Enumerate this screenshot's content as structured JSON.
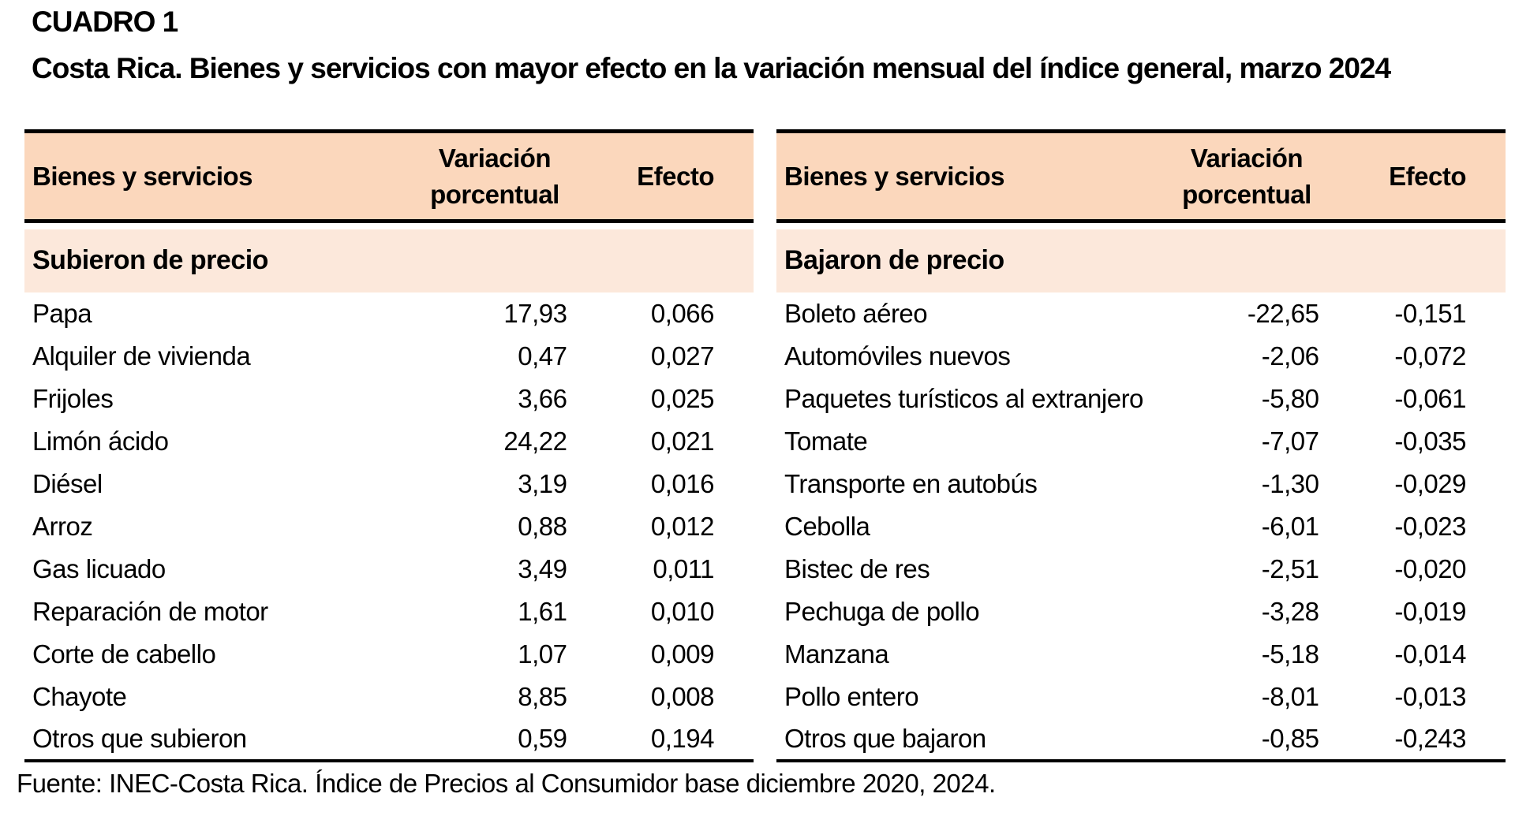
{
  "page": {
    "label": "CUADRO 1",
    "title": "Costa Rica. Bienes y servicios con mayor efecto en la variación mensual del índice general, marzo 2024",
    "source": "Fuente: INEC-Costa Rica. Índice de Precios al Consumidor base diciembre 2020, 2024."
  },
  "colors": {
    "header_bg": "#FBD7BC",
    "section_bg": "#FCE8DB",
    "border": "#000000"
  },
  "columns": {
    "items": "Bienes y servicios",
    "variation_line1": "Variación",
    "variation_line2": "porcentual",
    "effect": "Efecto"
  },
  "tables": [
    {
      "section": "Subieron de precio",
      "rows": [
        {
          "name": "Papa",
          "variation": "17,93",
          "effect": "0,066"
        },
        {
          "name": "Alquiler de vivienda",
          "variation": "0,47",
          "effect": "0,027"
        },
        {
          "name": "Frijoles",
          "variation": "3,66",
          "effect": "0,025"
        },
        {
          "name": "Limón ácido",
          "variation": "24,22",
          "effect": "0,021"
        },
        {
          "name": "Diésel",
          "variation": "3,19",
          "effect": "0,016"
        },
        {
          "name": "Arroz",
          "variation": "0,88",
          "effect": "0,012"
        },
        {
          "name": "Gas licuado",
          "variation": "3,49",
          "effect": "0,011"
        },
        {
          "name": "Reparación de motor",
          "variation": "1,61",
          "effect": "0,010"
        },
        {
          "name": "Corte de cabello",
          "variation": "1,07",
          "effect": "0,009"
        },
        {
          "name": "Chayote",
          "variation": "8,85",
          "effect": "0,008"
        },
        {
          "name": "Otros que subieron",
          "variation": "0,59",
          "effect": "0,194"
        }
      ]
    },
    {
      "section": "Bajaron de precio",
      "rows": [
        {
          "name": "Boleto aéreo",
          "variation": "-22,65",
          "effect": "-0,151"
        },
        {
          "name": "Automóviles nuevos",
          "variation": "-2,06",
          "effect": "-0,072"
        },
        {
          "name": "Paquetes turísticos al extranjero",
          "variation": "-5,80",
          "effect": "-0,061"
        },
        {
          "name": "Tomate",
          "variation": "-7,07",
          "effect": "-0,035"
        },
        {
          "name": "Transporte en autobús",
          "variation": "-1,30",
          "effect": "-0,029"
        },
        {
          "name": "Cebolla",
          "variation": "-6,01",
          "effect": "-0,023"
        },
        {
          "name": "Bistec de res",
          "variation": "-2,51",
          "effect": "-0,020"
        },
        {
          "name": "Pechuga de pollo",
          "variation": "-3,28",
          "effect": "-0,019"
        },
        {
          "name": "Manzana",
          "variation": "-5,18",
          "effect": "-0,014"
        },
        {
          "name": "Pollo entero",
          "variation": "-8,01",
          "effect": "-0,013"
        },
        {
          "name": "Otros que bajaron",
          "variation": "-0,85",
          "effect": "-0,243"
        }
      ]
    }
  ]
}
